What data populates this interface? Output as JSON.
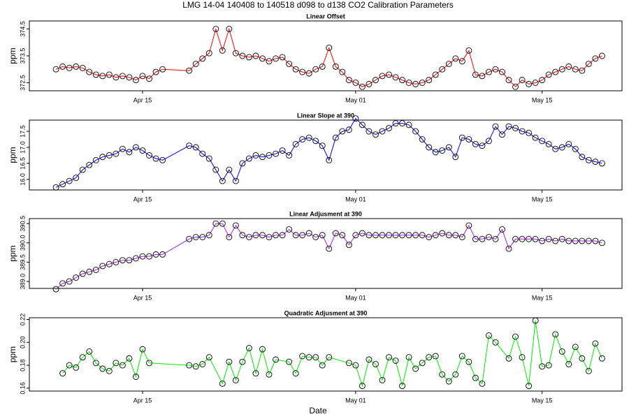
{
  "title": "LMG  14-04    140408 to 140518    d098 to d138   CO2 Calibration Parameters",
  "xlabel": "Date",
  "chart_data": [
    {
      "type": "line",
      "title": "Linear Offset",
      "ylabel": "ppm",
      "color": "#ff0000",
      "xlim": [
        "04-06 12:00",
        "05-21 00:00"
      ],
      "xticks": [
        {
          "value": "04-15 00:00",
          "label": "Apr 15"
        },
        {
          "value": "05-01 00:00",
          "label": "May 01"
        },
        {
          "value": "05-15 00:00",
          "label": "May 15"
        }
      ],
      "ylim": [
        372.2,
        374.8
      ],
      "yticks": [
        372.5,
        373.5,
        374.5
      ],
      "x": [
        "04-08 12:00",
        "04-09 00:00",
        "04-09 12:00",
        "04-10 00:00",
        "04-10 12:00",
        "04-11 00:00",
        "04-11 12:00",
        "04-12 00:00",
        "04-12 12:00",
        "04-13 00:00",
        "04-13 12:00",
        "04-14 00:00",
        "04-14 12:00",
        "04-15 00:00",
        "04-15 12:00",
        "04-16 00:00",
        "04-16 12:00",
        "04-18 12:00",
        "04-19 00:00",
        "04-19 12:00",
        "04-20 00:00",
        "04-20 12:00",
        "04-21 00:00",
        "04-21 12:00",
        "04-22 00:00",
        "04-22 12:00",
        "04-23 00:00",
        "04-23 12:00",
        "04-24 00:00",
        "04-24 12:00",
        "04-25 00:00",
        "04-25 12:00",
        "04-26 00:00",
        "04-26 12:00",
        "04-27 00:00",
        "04-27 12:00",
        "04-28 00:00",
        "04-28 12:00",
        "04-29 00:00",
        "04-29 12:00",
        "04-30 00:00",
        "04-30 12:00",
        "05-01 00:00",
        "05-01 12:00",
        "05-02 00:00",
        "05-02 12:00",
        "05-03 00:00",
        "05-03 12:00",
        "05-04 00:00",
        "05-04 12:00",
        "05-05 00:00",
        "05-05 12:00",
        "05-06 00:00",
        "05-06 12:00",
        "05-07 00:00",
        "05-07 12:00",
        "05-08 00:00",
        "05-08 12:00",
        "05-09 00:00",
        "05-09 12:00",
        "05-10 00:00",
        "05-10 12:00",
        "05-11 00:00",
        "05-11 12:00",
        "05-12 00:00",
        "05-12 12:00",
        "05-13 00:00",
        "05-13 12:00",
        "05-14 00:00",
        "05-14 12:00",
        "05-15 00:00",
        "05-15 12:00",
        "05-16 00:00",
        "05-16 12:00",
        "05-17 00:00",
        "05-17 12:00",
        "05-18 00:00",
        "05-18 12:00",
        "05-19 00:00",
        "05-19 12:00"
      ],
      "values": [
        373.0,
        373.1,
        373.05,
        373.1,
        373.05,
        372.9,
        372.8,
        372.75,
        372.8,
        372.7,
        372.75,
        372.7,
        372.6,
        372.75,
        372.65,
        372.9,
        373.0,
        372.95,
        373.2,
        373.4,
        373.6,
        374.5,
        373.7,
        374.5,
        373.6,
        373.5,
        373.45,
        373.5,
        373.4,
        373.3,
        373.4,
        373.45,
        373.2,
        373.0,
        372.9,
        372.85,
        373.0,
        373.1,
        373.8,
        373.1,
        372.9,
        372.6,
        372.5,
        372.35,
        372.45,
        372.6,
        372.75,
        372.8,
        372.7,
        372.6,
        372.5,
        372.45,
        372.5,
        372.6,
        372.8,
        373.0,
        373.2,
        373.4,
        373.3,
        373.7,
        372.8,
        372.75,
        372.9,
        373.0,
        372.9,
        372.6,
        372.35,
        372.6,
        372.45,
        372.5,
        372.6,
        372.8,
        372.9,
        373.0,
        373.1,
        373.0,
        372.95,
        373.2,
        373.4,
        373.5
      ]
    },
    {
      "type": "line",
      "title": "Linear Slope at 390",
      "ylabel": "ppm",
      "color": "#0000ff",
      "xlim": [
        "04-06 12:00",
        "05-21 00:00"
      ],
      "xticks": [
        {
          "value": "04-15 00:00",
          "label": "Apr 15"
        },
        {
          "value": "05-01 00:00",
          "label": "May 01"
        },
        {
          "value": "05-15 00:00",
          "label": "May 15"
        }
      ],
      "ylim": [
        15.67,
        17.85
      ],
      "yticks": [
        {
          "value": 16,
          "label": "16.0"
        },
        16.5,
        {
          "value": 17,
          "label": "17.0"
        },
        17.5
      ],
      "x": [
        "04-08 12:00",
        "04-09 00:00",
        "04-09 12:00",
        "04-10 00:00",
        "04-10 12:00",
        "04-11 00:00",
        "04-11 12:00",
        "04-12 00:00",
        "04-12 12:00",
        "04-13 00:00",
        "04-13 12:00",
        "04-14 00:00",
        "04-14 12:00",
        "04-15 00:00",
        "04-15 12:00",
        "04-16 00:00",
        "04-16 12:00",
        "04-18 12:00",
        "04-19 00:00",
        "04-19 12:00",
        "04-20 00:00",
        "04-20 12:00",
        "04-21 00:00",
        "04-21 12:00",
        "04-22 00:00",
        "04-22 12:00",
        "04-23 00:00",
        "04-23 12:00",
        "04-24 00:00",
        "04-24 12:00",
        "04-25 00:00",
        "04-25 12:00",
        "04-26 00:00",
        "04-26 12:00",
        "04-27 00:00",
        "04-27 12:00",
        "04-28 00:00",
        "04-28 12:00",
        "04-29 00:00",
        "04-29 12:00",
        "04-30 00:00",
        "04-30 12:00",
        "05-01 00:00",
        "05-01 12:00",
        "05-02 00:00",
        "05-02 12:00",
        "05-03 00:00",
        "05-03 12:00",
        "05-04 00:00",
        "05-04 12:00",
        "05-05 00:00",
        "05-05 12:00",
        "05-06 00:00",
        "05-06 12:00",
        "05-07 00:00",
        "05-07 12:00",
        "05-08 00:00",
        "05-08 12:00",
        "05-09 00:00",
        "05-09 12:00",
        "05-10 00:00",
        "05-10 12:00",
        "05-11 00:00",
        "05-11 12:00",
        "05-12 00:00",
        "05-12 12:00",
        "05-13 00:00",
        "05-13 12:00",
        "05-14 00:00",
        "05-14 12:00",
        "05-15 00:00",
        "05-15 12:00",
        "05-16 00:00",
        "05-16 12:00",
        "05-17 00:00",
        "05-17 12:00",
        "05-18 00:00",
        "05-18 12:00",
        "05-19 00:00",
        "05-19 12:00"
      ],
      "values": [
        15.75,
        15.85,
        15.95,
        16.05,
        16.3,
        16.45,
        16.6,
        16.7,
        16.75,
        16.8,
        16.95,
        16.85,
        17.0,
        16.9,
        16.75,
        16.65,
        16.6,
        17.05,
        17.0,
        16.8,
        16.65,
        16.3,
        15.95,
        16.3,
        15.95,
        16.5,
        16.65,
        16.75,
        16.7,
        16.75,
        16.8,
        16.9,
        16.75,
        17.1,
        17.25,
        17.3,
        17.2,
        17.05,
        16.6,
        17.3,
        17.5,
        17.55,
        17.9,
        17.7,
        17.5,
        17.4,
        17.5,
        17.6,
        17.75,
        17.75,
        17.7,
        17.5,
        17.25,
        17.0,
        16.85,
        16.9,
        17.0,
        16.7,
        17.3,
        17.25,
        17.1,
        17.05,
        17.2,
        17.65,
        17.4,
        17.65,
        17.6,
        17.5,
        17.45,
        17.3,
        17.2,
        17.1,
        16.95,
        17.0,
        17.1,
        16.95,
        16.7,
        16.6,
        16.55,
        16.5
      ]
    },
    {
      "type": "line",
      "title": "Linear Adjusment at 390",
      "ylabel": "ppm",
      "color": "#a020f0",
      "xlim": [
        "04-06 12:00",
        "05-21 00:00"
      ],
      "xticks": [
        {
          "value": "04-15 00:00",
          "label": "Apr 15"
        },
        {
          "value": "05-01 00:00",
          "label": "May 01"
        },
        {
          "value": "05-15 00:00",
          "label": "May 15"
        }
      ],
      "ylim": [
        388.82,
        390.63
      ],
      "yticks": [
        {
          "value": 389,
          "label": "389.0"
        },
        389.5,
        {
          "value": 390,
          "label": "390.0"
        },
        390.5
      ],
      "x": [
        "04-08 12:00",
        "04-09 00:00",
        "04-09 12:00",
        "04-10 00:00",
        "04-10 12:00",
        "04-11 00:00",
        "04-11 12:00",
        "04-12 00:00",
        "04-12 12:00",
        "04-13 00:00",
        "04-13 12:00",
        "04-14 00:00",
        "04-14 12:00",
        "04-15 00:00",
        "04-15 12:00",
        "04-16 00:00",
        "04-16 12:00",
        "04-18 12:00",
        "04-19 00:00",
        "04-19 12:00",
        "04-20 00:00",
        "04-20 12:00",
        "04-21 00:00",
        "04-21 12:00",
        "04-22 00:00",
        "04-22 12:00",
        "04-23 00:00",
        "04-23 12:00",
        "04-24 00:00",
        "04-24 12:00",
        "04-25 00:00",
        "04-25 12:00",
        "04-26 00:00",
        "04-26 12:00",
        "04-27 00:00",
        "04-27 12:00",
        "04-28 00:00",
        "04-28 12:00",
        "04-29 00:00",
        "04-29 12:00",
        "04-30 00:00",
        "04-30 12:00",
        "05-01 00:00",
        "05-01 12:00",
        "05-02 00:00",
        "05-02 12:00",
        "05-03 00:00",
        "05-03 12:00",
        "05-04 00:00",
        "05-04 12:00",
        "05-05 00:00",
        "05-05 12:00",
        "05-06 00:00",
        "05-06 12:00",
        "05-07 00:00",
        "05-07 12:00",
        "05-08 00:00",
        "05-08 12:00",
        "05-09 00:00",
        "05-09 12:00",
        "05-10 00:00",
        "05-10 12:00",
        "05-11 00:00",
        "05-11 12:00",
        "05-12 00:00",
        "05-12 12:00",
        "05-13 00:00",
        "05-13 12:00",
        "05-14 00:00",
        "05-14 12:00",
        "05-15 00:00",
        "05-15 12:00",
        "05-16 00:00",
        "05-16 12:00",
        "05-17 00:00",
        "05-17 12:00",
        "05-18 00:00",
        "05-18 12:00",
        "05-19 00:00",
        "05-19 12:00"
      ],
      "values": [
        388.8,
        388.95,
        389.0,
        389.1,
        389.2,
        389.25,
        389.3,
        389.4,
        389.45,
        389.5,
        389.55,
        389.55,
        389.6,
        389.65,
        389.65,
        389.7,
        389.7,
        390.1,
        390.15,
        390.15,
        390.2,
        390.5,
        390.5,
        390.15,
        390.45,
        390.2,
        390.15,
        390.2,
        390.2,
        390.15,
        390.2,
        390.2,
        390.35,
        390.2,
        390.2,
        390.25,
        390.15,
        390.2,
        389.85,
        390.25,
        390.2,
        389.95,
        390.2,
        390.25,
        390.2,
        390.2,
        390.2,
        390.2,
        390.2,
        390.2,
        390.2,
        390.2,
        390.2,
        390.15,
        390.2,
        390.25,
        390.2,
        390.2,
        390.15,
        390.45,
        390.1,
        390.1,
        390.15,
        390.1,
        390.35,
        389.85,
        390.1,
        390.1,
        390.1,
        390.1,
        390.05,
        390.1,
        390.05,
        390.1,
        390.05,
        390.05,
        390.05,
        390.05,
        390.05,
        390.0
      ]
    },
    {
      "type": "line",
      "title": "Quadratic Adjusment at 390",
      "ylabel": "ppm",
      "color": "#00ee00",
      "xlim": [
        "04-06 12:00",
        "05-21 00:00"
      ],
      "xticks": [
        {
          "value": "04-15 00:00",
          "label": "Apr 15"
        },
        {
          "value": "05-01 00:00",
          "label": "May 01"
        },
        {
          "value": "05-15 00:00",
          "label": "May 15"
        }
      ],
      "ylim": [
        0.1575,
        0.2215
      ],
      "yticks": [
        0.16,
        0.18,
        {
          "value": 0.2,
          "label": "0.20"
        },
        0.22
      ],
      "x": [
        "04-09 00:00",
        "04-09 12:00",
        "04-10 00:00",
        "04-10 12:00",
        "04-11 00:00",
        "04-11 12:00",
        "04-12 00:00",
        "04-12 12:00",
        "04-13 00:00",
        "04-13 12:00",
        "04-14 00:00",
        "04-14 12:00",
        "04-15 00:00",
        "04-15 12:00",
        "04-18 12:00",
        "04-19 00:00",
        "04-19 12:00",
        "04-20 00:00",
        "04-21 00:00",
        "04-21 12:00",
        "04-22 00:00",
        "04-22 12:00",
        "04-23 00:00",
        "04-23 12:00",
        "04-24 00:00",
        "04-24 12:00",
        "04-25 00:00",
        "04-26 00:00",
        "04-26 12:00",
        "04-27 00:00",
        "04-27 12:00",
        "04-28 00:00",
        "04-28 12:00",
        "04-29 00:00",
        "04-30 12:00",
        "05-01 00:00",
        "05-01 12:00",
        "05-02 00:00",
        "05-02 12:00",
        "05-03 00:00",
        "05-03 12:00",
        "05-04 00:00",
        "05-04 12:00",
        "05-05 00:00",
        "05-05 12:00",
        "05-06 00:00",
        "05-06 12:00",
        "05-07 00:00",
        "05-07 12:00",
        "05-08 00:00",
        "05-08 12:00",
        "05-09 00:00",
        "05-09 12:00",
        "05-10 00:00",
        "05-10 12:00",
        "05-11 00:00",
        "05-11 12:00",
        "05-12 12:00",
        "05-13 00:00",
        "05-13 12:00",
        "05-14 00:00",
        "05-14 12:00",
        "05-15 00:00",
        "05-15 12:00",
        "05-16 00:00",
        "05-16 12:00",
        "05-17 00:00",
        "05-17 12:00",
        "05-18 00:00",
        "05-18 12:00",
        "05-19 00:00",
        "05-19 12:00"
      ],
      "values": [
        0.173,
        0.18,
        0.178,
        0.187,
        0.192,
        0.182,
        0.177,
        0.175,
        0.182,
        0.18,
        0.186,
        0.17,
        0.194,
        0.182,
        0.18,
        0.179,
        0.181,
        0.187,
        0.164,
        0.183,
        0.167,
        0.183,
        0.195,
        0.173,
        0.194,
        0.172,
        0.185,
        0.183,
        0.173,
        0.188,
        0.187,
        0.187,
        0.18,
        0.187,
        0.182,
        0.18,
        0.162,
        0.185,
        0.181,
        0.167,
        0.187,
        0.184,
        0.162,
        0.187,
        0.177,
        0.182,
        0.187,
        0.188,
        0.172,
        0.166,
        0.172,
        0.188,
        0.183,
        0.169,
        0.164,
        0.206,
        0.2,
        0.186,
        0.205,
        0.187,
        0.162,
        0.219,
        0.179,
        0.18,
        0.207,
        0.192,
        0.181,
        0.196,
        0.186,
        0.175,
        0.199,
        0.186
      ]
    }
  ]
}
